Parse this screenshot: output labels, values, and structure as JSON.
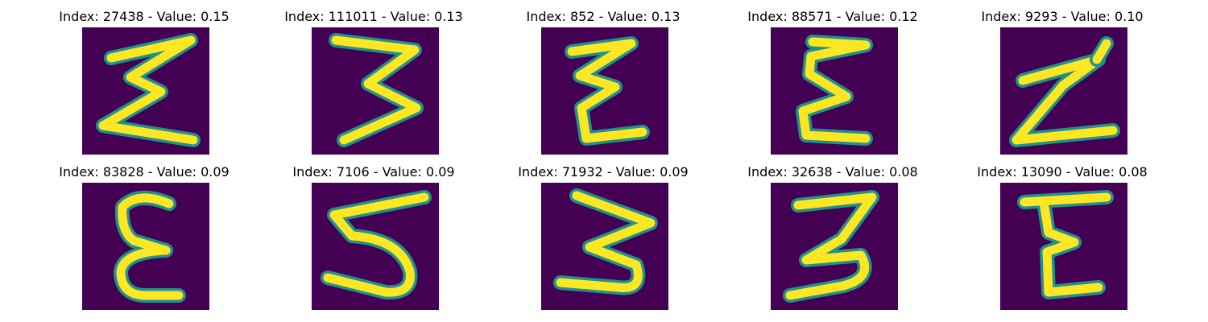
{
  "samples": [
    {
      "title": "Index: 27438 - Value: 0.15",
      "index": 27438,
      "value": 0.15
    },
    {
      "title": "Index: 111011 - Value: 0.13",
      "index": 111011,
      "value": 0.13
    },
    {
      "title": "Index: 852 - Value: 0.13",
      "index": 852,
      "value": 0.13
    },
    {
      "title": "Index: 88571 - Value: 0.12",
      "index": 88571,
      "value": 0.12
    },
    {
      "title": "Index: 9293 - Value: 0.10",
      "index": 9293,
      "value": 0.1
    },
    {
      "title": "Index: 83828 - Value: 0.09",
      "index": 83828,
      "value": 0.09
    },
    {
      "title": "Index: 7106 - Value: 0.09",
      "index": 7106,
      "value": 0.09
    },
    {
      "title": "Index: 71932 - Value: 0.09",
      "index": 71932,
      "value": 0.09
    },
    {
      "title": "Index: 32638 - Value: 0.08",
      "index": 32638,
      "value": 0.08
    },
    {
      "title": "Index: 13090 - Value: 0.08",
      "index": 13090,
      "value": 0.08
    }
  ],
  "colors": {
    "background": "#440154",
    "stroke_mid": "#21918c",
    "stroke_high": "#fde725"
  }
}
